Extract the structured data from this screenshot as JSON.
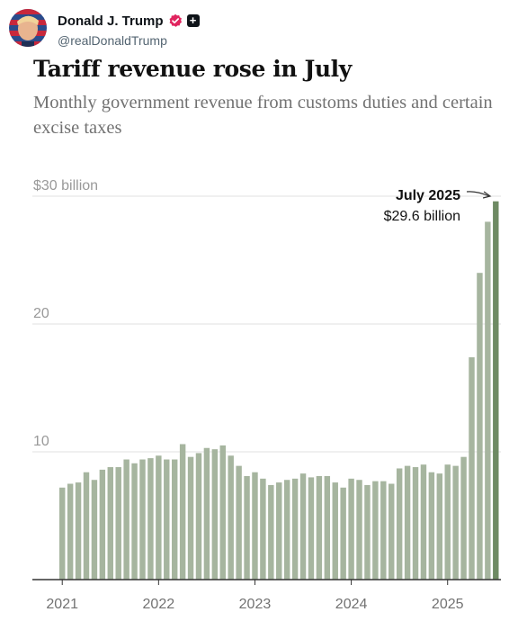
{
  "post": {
    "display_name": "Donald J. Trump",
    "handle": "@realDonaldTrump",
    "verified_icon": "verified-badge-icon",
    "plus_label": "+",
    "colors": {
      "verified": "#e0245e"
    }
  },
  "chart_data": {
    "type": "bar",
    "title": "Tariff revenue rose in July",
    "subtitle": "Monthly government revenue from customs duties and certain excise taxes",
    "ylabel": "",
    "xlabel": "",
    "ylim": [
      0,
      30
    ],
    "y_ticks": [
      {
        "value": 30,
        "label": "$30 billion"
      },
      {
        "value": 20,
        "label": "20"
      },
      {
        "value": 10,
        "label": "10"
      }
    ],
    "x_ticks": [
      {
        "category": "2021-01",
        "label": "2021"
      },
      {
        "category": "2022-01",
        "label": "2022"
      },
      {
        "category": "2023-01",
        "label": "2023"
      },
      {
        "category": "2024-01",
        "label": "2024"
      },
      {
        "category": "2025-01",
        "label": "2025"
      }
    ],
    "categories": [
      "2021-01",
      "2021-02",
      "2021-03",
      "2021-04",
      "2021-05",
      "2021-06",
      "2021-07",
      "2021-08",
      "2021-09",
      "2021-10",
      "2021-11",
      "2021-12",
      "2022-01",
      "2022-02",
      "2022-03",
      "2022-04",
      "2022-05",
      "2022-06",
      "2022-07",
      "2022-08",
      "2022-09",
      "2022-10",
      "2022-11",
      "2022-12",
      "2023-01",
      "2023-02",
      "2023-03",
      "2023-04",
      "2023-05",
      "2023-06",
      "2023-07",
      "2023-08",
      "2023-09",
      "2023-10",
      "2023-11",
      "2023-12",
      "2024-01",
      "2024-02",
      "2024-03",
      "2024-04",
      "2024-05",
      "2024-06",
      "2024-07",
      "2024-08",
      "2024-09",
      "2024-10",
      "2024-11",
      "2024-12",
      "2025-01",
      "2025-02",
      "2025-03",
      "2025-04",
      "2025-05",
      "2025-06",
      "2025-07"
    ],
    "values": [
      7.2,
      7.5,
      7.6,
      8.4,
      7.8,
      8.6,
      8.8,
      8.8,
      9.4,
      9.1,
      9.4,
      9.5,
      9.7,
      9.4,
      9.4,
      10.6,
      9.6,
      9.9,
      10.3,
      10.2,
      10.5,
      9.7,
      8.9,
      8.1,
      8.4,
      7.9,
      7.4,
      7.6,
      7.8,
      7.9,
      8.3,
      8.0,
      8.1,
      8.1,
      7.6,
      7.2,
      7.9,
      7.8,
      7.4,
      7.7,
      7.7,
      7.5,
      8.7,
      8.9,
      8.8,
      9.0,
      8.4,
      8.3,
      9.0,
      8.9,
      9.6,
      17.4,
      24.0,
      28.0,
      29.6
    ],
    "highlight_index": 54,
    "annotation": {
      "title": "July 2025",
      "value": "$29.6 billion"
    },
    "colors": {
      "bar": "#a6b59f",
      "highlight": "#6e8a63",
      "grid": "#e2e2e2",
      "axis": "#333333"
    },
    "grid": true,
    "legend": "none"
  }
}
